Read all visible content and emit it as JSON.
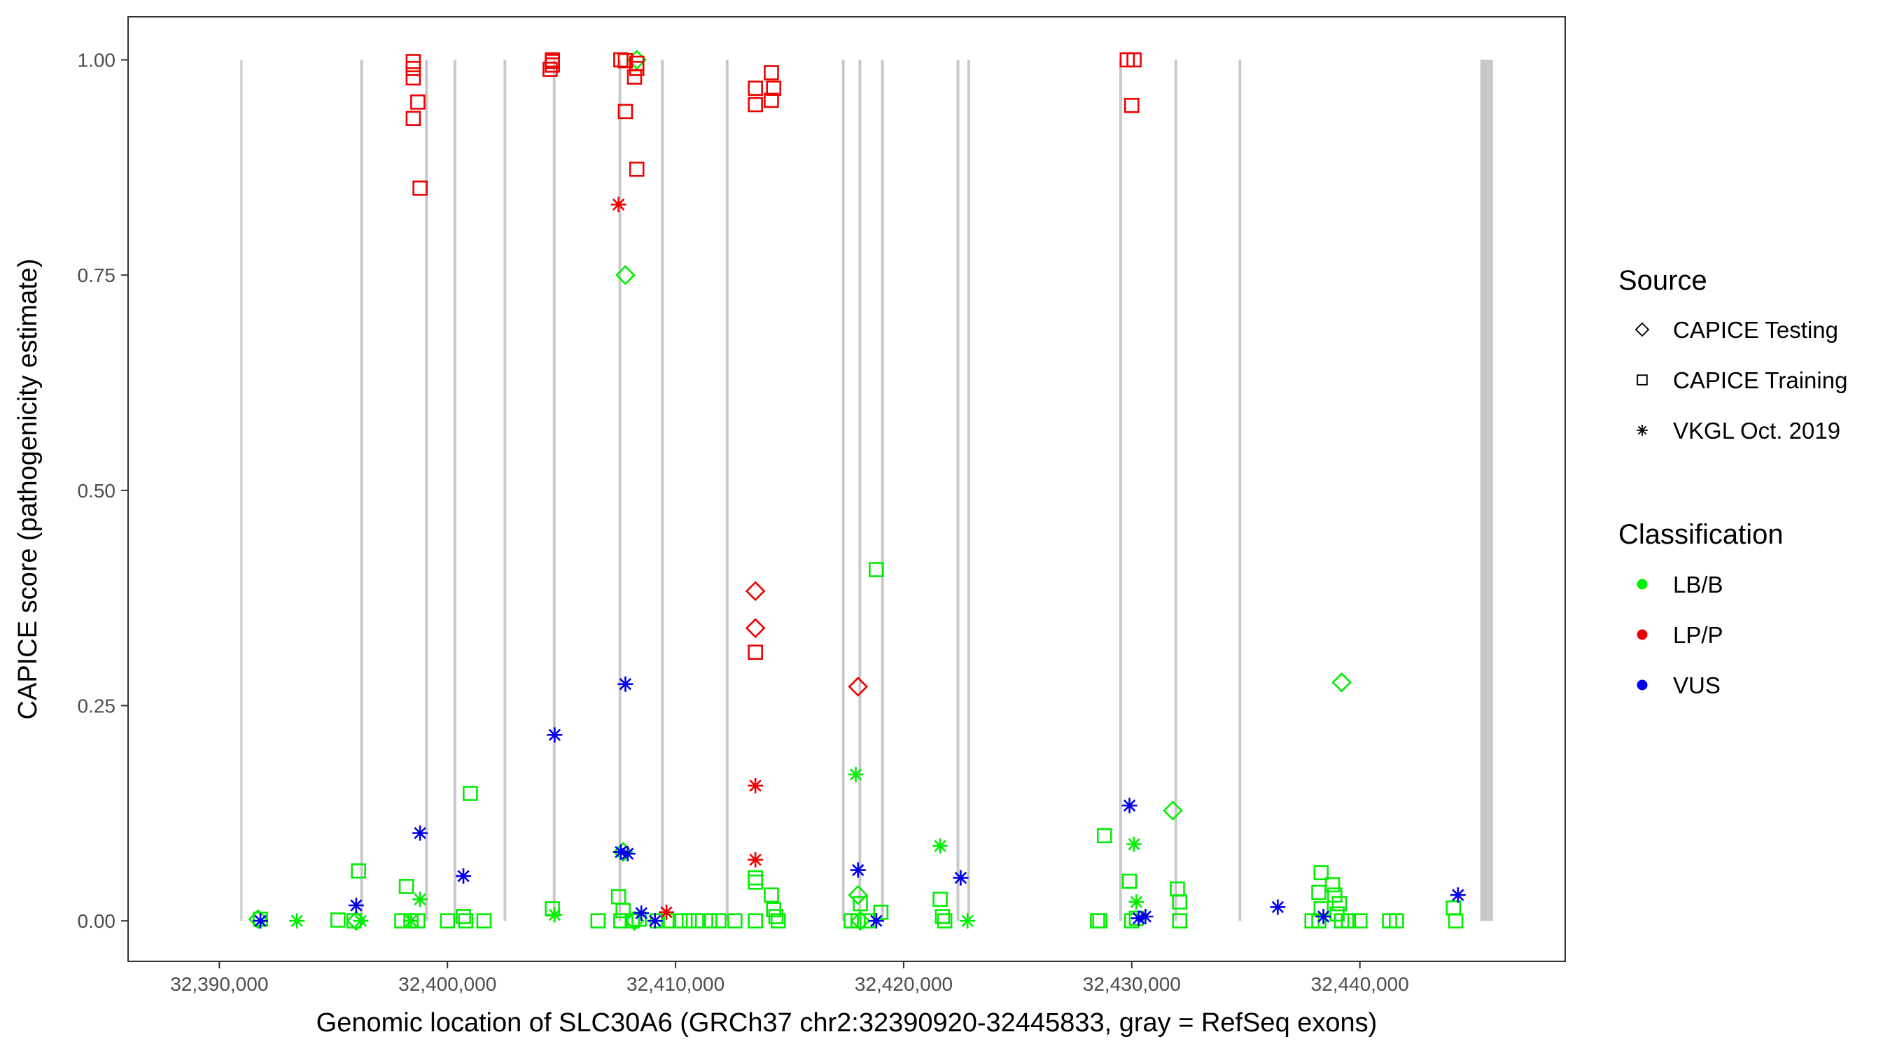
{
  "chart_data": {
    "type": "scatter",
    "xlabel": "Genomic location of SLC30A6 (GRCh37 chr2:32390920-32445833, gray = RefSeq exons)",
    "ylabel": "CAPICE score (pathogenicity estimate)",
    "xlim": [
      32386000,
      32449000
    ],
    "ylim": [
      -0.047,
      1.05
    ],
    "x_ticks": [
      32390000,
      32400000,
      32410000,
      32420000,
      32430000,
      32440000
    ],
    "x_tick_labels": [
      "32,390,000",
      "32,400,000",
      "32,410,000",
      "32,420,000",
      "32,430,000",
      "32,440,000"
    ],
    "y_ticks": [
      0,
      0.25,
      0.5,
      0.75,
      1.0
    ],
    "y_tick_labels": [
      "0.00",
      "0.25",
      "0.50",
      "0.75",
      "1.00"
    ],
    "grid": false,
    "exon_color": "#c8c8c8",
    "exons": [
      {
        "start": 32390920,
        "end": 32391000
      },
      {
        "start": 32396180,
        "end": 32396300
      },
      {
        "start": 32399020,
        "end": 32399140
      },
      {
        "start": 32400270,
        "end": 32400390
      },
      {
        "start": 32402460,
        "end": 32402580
      },
      {
        "start": 32404620,
        "end": 32404740
      },
      {
        "start": 32407500,
        "end": 32407620
      },
      {
        "start": 32409360,
        "end": 32409480
      },
      {
        "start": 32412200,
        "end": 32412320
      },
      {
        "start": 32417290,
        "end": 32417410
      },
      {
        "start": 32418020,
        "end": 32418140
      },
      {
        "start": 32419010,
        "end": 32419130
      },
      {
        "start": 32422320,
        "end": 32422440
      },
      {
        "start": 32422790,
        "end": 32422910
      },
      {
        "start": 32429450,
        "end": 32429570
      },
      {
        "start": 32431870,
        "end": 32431990
      },
      {
        "start": 32434680,
        "end": 32434800
      },
      {
        "start": 32445280,
        "end": 32445833
      }
    ],
    "legend": {
      "placement": "right",
      "source_title": "Source",
      "source_items": [
        {
          "label": "CAPICE Testing",
          "shape": "diamond"
        },
        {
          "label": "CAPICE Training",
          "shape": "square"
        },
        {
          "label": "VKGL Oct. 2019",
          "shape": "asterisk"
        }
      ],
      "class_title": "Classification",
      "class_items": [
        {
          "label": "LB/B",
          "color": "#00ee00"
        },
        {
          "label": "LP/P",
          "color": "#ee0000"
        },
        {
          "label": "VUS",
          "color": "#0000ee"
        }
      ]
    },
    "colors": {
      "LB/B": "#00ee00",
      "LP/P": "#ee0000",
      "VUS": "#0000ee"
    },
    "series": [
      {
        "source": "CAPICE Testing",
        "class": "LB/B",
        "points": [
          [
            32391700,
            0.002
          ],
          [
            32407800,
            0.75
          ],
          [
            32408300,
            1.0
          ],
          [
            32407700,
            0.08
          ],
          [
            32418000,
            0.03
          ],
          [
            32431800,
            0.128
          ],
          [
            32439200,
            0.277
          ],
          [
            32396000,
            0.0
          ],
          [
            32408200,
            0.0
          ],
          [
            32418100,
            0.0
          ]
        ]
      },
      {
        "source": "CAPICE Testing",
        "class": "LP/P",
        "points": [
          [
            32413500,
            0.383
          ],
          [
            32413500,
            0.34
          ],
          [
            32418000,
            0.272
          ]
        ]
      },
      {
        "source": "CAPICE Training",
        "class": "LP/P",
        "points": [
          [
            32398500,
            0.998
          ],
          [
            32398500,
            0.99
          ],
          [
            32398500,
            0.979
          ],
          [
            32398700,
            0.951
          ],
          [
            32398500,
            0.932
          ],
          [
            32398800,
            0.851
          ],
          [
            32404600,
            1.0
          ],
          [
            32404600,
            0.998
          ],
          [
            32404600,
            0.994
          ],
          [
            32404500,
            0.989
          ],
          [
            32407600,
            1.0
          ],
          [
            32407800,
            0.999
          ],
          [
            32408300,
            0.996
          ],
          [
            32408300,
            0.99
          ],
          [
            32408200,
            0.98
          ],
          [
            32407800,
            0.94
          ],
          [
            32408300,
            0.873
          ],
          [
            32413500,
            0.967
          ],
          [
            32414200,
            0.985
          ],
          [
            32414300,
            0.967
          ],
          [
            32414200,
            0.953
          ],
          [
            32413500,
            0.948
          ],
          [
            32413500,
            0.312
          ],
          [
            32429800,
            1.0
          ],
          [
            32430100,
            1.0
          ],
          [
            32430000,
            0.947
          ]
        ]
      },
      {
        "source": "CAPICE Training",
        "class": "LB/B",
        "points": [
          [
            32391800,
            0.002
          ],
          [
            32395200,
            0.001
          ],
          [
            32395900,
            0.0
          ],
          [
            32396100,
            0.058
          ],
          [
            32398200,
            0.04
          ],
          [
            32398000,
            0.0
          ],
          [
            32398400,
            0.0
          ],
          [
            32398700,
            0.0
          ],
          [
            32400000,
            0.0
          ],
          [
            32400700,
            0.005
          ],
          [
            32400800,
            0.0
          ],
          [
            32401000,
            0.148
          ],
          [
            32401600,
            0.0
          ],
          [
            32404600,
            0.014
          ],
          [
            32406600,
            0.0
          ],
          [
            32407500,
            0.028
          ],
          [
            32407600,
            0.0
          ],
          [
            32407700,
            0.012
          ],
          [
            32408100,
            0.0
          ],
          [
            32408400,
            0.002
          ],
          [
            32409200,
            0.0
          ],
          [
            32409700,
            0.0
          ],
          [
            32410200,
            0.0
          ],
          [
            32410600,
            0.0
          ],
          [
            32411000,
            0.0
          ],
          [
            32411500,
            0.0
          ],
          [
            32411900,
            0.0
          ],
          [
            32412600,
            0.0
          ],
          [
            32413500,
            0.05
          ],
          [
            32413500,
            0.045
          ],
          [
            32413500,
            0.0
          ],
          [
            32414200,
            0.03
          ],
          [
            32414300,
            0.013
          ],
          [
            32414400,
            0.005
          ],
          [
            32414500,
            0.0
          ],
          [
            32417700,
            0.0
          ],
          [
            32418000,
            0.0
          ],
          [
            32418100,
            0.02
          ],
          [
            32418400,
            0.0
          ],
          [
            32418800,
            0.408
          ],
          [
            32419000,
            0.01
          ],
          [
            32421600,
            0.025
          ],
          [
            32421700,
            0.005
          ],
          [
            32421800,
            0.0
          ],
          [
            32428500,
            0.0
          ],
          [
            32428800,
            0.099
          ],
          [
            32428600,
            0.0
          ],
          [
            32429900,
            0.046
          ],
          [
            32430000,
            0.0
          ],
          [
            32430200,
            0.003
          ],
          [
            32432000,
            0.037
          ],
          [
            32432100,
            0.022
          ],
          [
            32432100,
            0.0
          ],
          [
            32437900,
            0.0
          ],
          [
            32438200,
            0.0
          ],
          [
            32438300,
            0.056
          ],
          [
            32438200,
            0.033
          ],
          [
            32438300,
            0.014
          ],
          [
            32438800,
            0.042
          ],
          [
            32438900,
            0.03
          ],
          [
            32439000,
            0.008
          ],
          [
            32439100,
            0.02
          ],
          [
            32439200,
            0.0
          ],
          [
            32439500,
            0.0
          ],
          [
            32440000,
            0.0
          ],
          [
            32441300,
            0.0
          ],
          [
            32441600,
            0.0
          ],
          [
            32444100,
            0.015
          ],
          [
            32444200,
            0.0
          ]
        ]
      },
      {
        "source": "VKGL Oct. 2019",
        "class": "LB/B",
        "points": [
          [
            32393400,
            0.0
          ],
          [
            32396200,
            0.0
          ],
          [
            32398400,
            0.0
          ],
          [
            32398800,
            0.025
          ],
          [
            32404700,
            0.007
          ],
          [
            32417900,
            0.17
          ],
          [
            32421600,
            0.087
          ],
          [
            32422800,
            0.0
          ],
          [
            32430100,
            0.089
          ],
          [
            32430200,
            0.022
          ]
        ]
      },
      {
        "source": "VKGL Oct. 2019",
        "class": "LP/P",
        "points": [
          [
            32407500,
            0.832
          ],
          [
            32413500,
            0.157
          ],
          [
            32413500,
            0.071
          ],
          [
            32409600,
            0.01
          ]
        ]
      },
      {
        "source": "VKGL Oct. 2019",
        "class": "VUS",
        "points": [
          [
            32391800,
            0.0
          ],
          [
            32396000,
            0.018
          ],
          [
            32398800,
            0.102
          ],
          [
            32400700,
            0.052
          ],
          [
            32404700,
            0.216
          ],
          [
            32407800,
            0.275
          ],
          [
            32407600,
            0.08
          ],
          [
            32407900,
            0.078
          ],
          [
            32408500,
            0.009
          ],
          [
            32409100,
            0.0
          ],
          [
            32418000,
            0.059
          ],
          [
            32418800,
            0.0
          ],
          [
            32422500,
            0.05
          ],
          [
            32429900,
            0.134
          ],
          [
            32430300,
            0.003
          ],
          [
            32430600,
            0.005
          ],
          [
            32436400,
            0.016
          ],
          [
            32438400,
            0.005
          ],
          [
            32444300,
            0.03
          ]
        ]
      }
    ]
  }
}
